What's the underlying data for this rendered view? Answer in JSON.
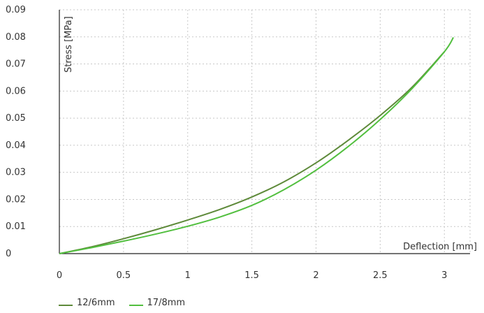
{
  "chart_data": {
    "type": "line",
    "xlabel": "Deflection [mm]",
    "ylabel": "Stress [MPa]",
    "xlim": [
      0,
      3.2
    ],
    "ylim": [
      0,
      0.09
    ],
    "xticks": [
      "0",
      "0.5",
      "1",
      "1.5",
      "2",
      "2.5",
      "3"
    ],
    "xtick_values": [
      0,
      0.5,
      1,
      1.5,
      2,
      2.5,
      3
    ],
    "yticks": [
      "0",
      "0.01",
      "0.02",
      "0.03",
      "0.04",
      "0.05",
      "0.06",
      "0.07",
      "0.08",
      "0.09"
    ],
    "ytick_values": [
      0,
      0.01,
      0.02,
      0.03,
      0.04,
      0.05,
      0.06,
      0.07,
      0.08,
      0.09
    ],
    "grid": true,
    "legend_position": "bottom-left",
    "series": [
      {
        "name": "12/6mm",
        "color": "#5e8a3a",
        "x": [
          0,
          0.25,
          0.5,
          0.75,
          1.0,
          1.25,
          1.5,
          1.75,
          2.0,
          2.25,
          2.5,
          2.75,
          3.0
        ],
        "y": [
          0,
          0.0025,
          0.0055,
          0.0088,
          0.0124,
          0.0163,
          0.0209,
          0.0265,
          0.0335,
          0.0418,
          0.051,
          0.0615,
          0.0745
        ]
      },
      {
        "name": "17/8mm",
        "color": "#52bf3f",
        "x": [
          0,
          0.25,
          0.5,
          0.75,
          1.0,
          1.25,
          1.5,
          1.75,
          2.0,
          2.25,
          2.5,
          2.75,
          3.0,
          3.07
        ],
        "y": [
          0,
          0.0022,
          0.0046,
          0.0072,
          0.0101,
          0.0135,
          0.0178,
          0.0236,
          0.0308,
          0.0395,
          0.0495,
          0.061,
          0.0745,
          0.0798
        ]
      }
    ]
  }
}
